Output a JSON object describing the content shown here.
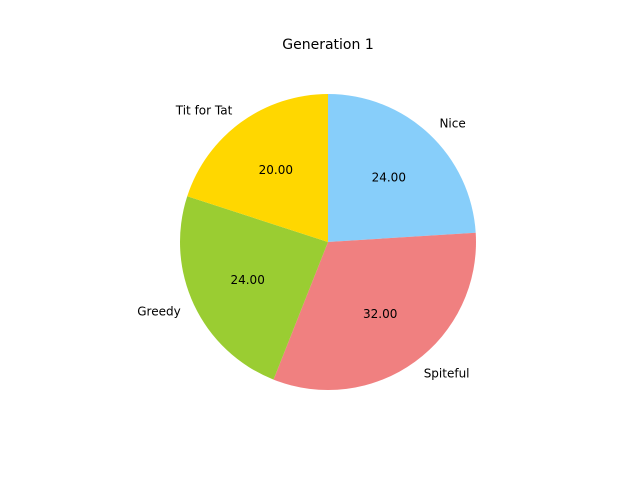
{
  "chart_data": {
    "type": "pie",
    "title": "Generation 1",
    "slices": [
      {
        "label": "Nice",
        "value": 24.0,
        "pct_label": "24.00",
        "color": "#87CEFA"
      },
      {
        "label": "Spiteful",
        "value": 32.0,
        "pct_label": "32.00",
        "color": "#F08080"
      },
      {
        "label": "Greedy",
        "value": 24.0,
        "pct_label": "24.00",
        "color": "#9ACD32"
      },
      {
        "label": "Tit for Tat",
        "value": 20.0,
        "pct_label": "20.00",
        "color": "#FFD700"
      }
    ],
    "start_angle_deg": 90,
    "direction": "clockwise",
    "legend": "none",
    "grid": false
  }
}
